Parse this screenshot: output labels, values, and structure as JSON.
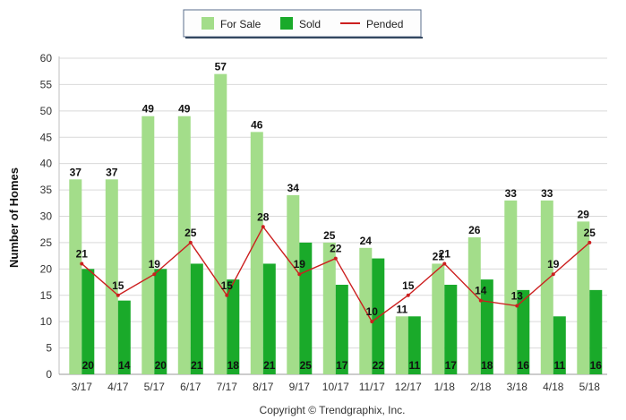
{
  "chart_data": {
    "type": "bar",
    "categories": [
      "3/17",
      "4/17",
      "5/17",
      "6/17",
      "7/17",
      "8/17",
      "9/17",
      "10/17",
      "11/17",
      "12/17",
      "1/18",
      "2/18",
      "3/18",
      "4/18",
      "5/18"
    ],
    "series": [
      {
        "name": "For Sale",
        "type": "bar",
        "color": "#a3dd8a",
        "values": [
          37,
          37,
          49,
          49,
          57,
          46,
          34,
          25,
          24,
          11,
          21,
          26,
          33,
          33,
          29
        ]
      },
      {
        "name": "Sold",
        "type": "bar",
        "color": "#1aaa2a",
        "values": [
          20,
          14,
          20,
          21,
          18,
          21,
          25,
          17,
          22,
          11,
          17,
          18,
          16,
          11,
          16
        ]
      },
      {
        "name": "Pended",
        "type": "line",
        "color": "#cc1f1f",
        "values": [
          21,
          15,
          19,
          25,
          15,
          28,
          19,
          22,
          10,
          15,
          21,
          14,
          13,
          19,
          25
        ]
      }
    ],
    "ylabel": "Number of Homes",
    "xlabel": "",
    "ylim": [
      0,
      60
    ],
    "yticks": [
      0,
      5,
      10,
      15,
      20,
      25,
      30,
      35,
      40,
      45,
      50,
      55,
      60
    ],
    "grid": true,
    "legend": "top-center"
  },
  "footer": {
    "copyright": "Copyright © Trendgraphix, Inc."
  }
}
